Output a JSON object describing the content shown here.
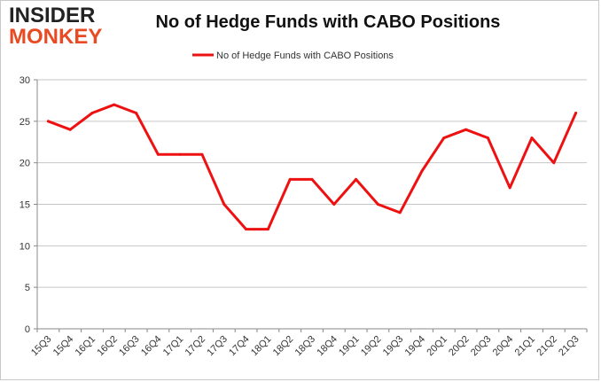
{
  "logo": {
    "line1": "INSIDER",
    "line2": "MONKEY"
  },
  "chart_data": {
    "type": "line",
    "title": "No of Hedge Funds with CABO Positions",
    "xlabel": "",
    "ylabel": "",
    "ylim": [
      0,
      30
    ],
    "yticks": [
      0,
      5,
      10,
      15,
      20,
      25,
      30
    ],
    "grid": true,
    "legend_position": "top",
    "categories": [
      "15Q3",
      "15Q4",
      "16Q1",
      "16Q2",
      "16Q3",
      "16Q4",
      "17Q1",
      "17Q2",
      "17Q3",
      "17Q4",
      "18Q1",
      "18Q2",
      "18Q3",
      "18Q4",
      "19Q1",
      "19Q2",
      "19Q3",
      "19Q4",
      "20Q1",
      "20Q2",
      "20Q3",
      "20Q4",
      "21Q1",
      "21Q2",
      "21Q3"
    ],
    "series": [
      {
        "name": "No of Hedge Funds with CABO Positions",
        "color": "#ee1111",
        "values": [
          25,
          24,
          26,
          27,
          26,
          21,
          21,
          21,
          15,
          12,
          12,
          18,
          18,
          15,
          18,
          15,
          14,
          19,
          23,
          24,
          23,
          17,
          23,
          20,
          26
        ]
      }
    ]
  }
}
